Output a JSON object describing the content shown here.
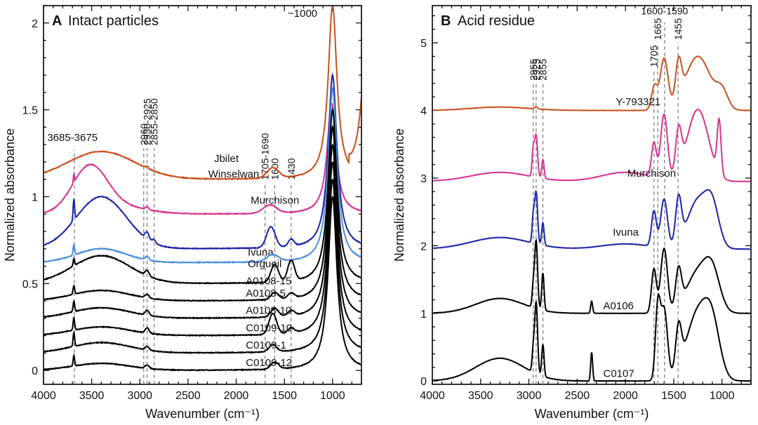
{
  "chart_data": [
    {
      "type": "line",
      "panel_letter": "A",
      "title": "Intact particles",
      "xlabel": "Wavenumber (cm⁻¹)",
      "ylabel": "Normalized absorbance",
      "xlim": [
        4000,
        700
      ],
      "ylim": [
        -0.08,
        2.1
      ],
      "x_ticks": [
        4000,
        3500,
        3000,
        2500,
        2000,
        1500,
        1000
      ],
      "y_ticks": [
        0,
        0.5,
        1,
        1.5,
        2
      ],
      "y_tick_labels": [
        "0",
        "0.5",
        "1",
        "1.5",
        "2"
      ],
      "x_minor_step": 100,
      "y_minor_step": 0.1,
      "series": [
        {
          "name": "Jbilet Winselwan",
          "color": "#c8501f",
          "offset": 1.1,
          "peak": 1.0,
          "profile": "jbilet"
        },
        {
          "name": "Murchison",
          "color": "#d6338f",
          "offset": 0.9,
          "peak": 0.8,
          "profile": "murch"
        },
        {
          "name": "Ivuna",
          "color": "#1a24a8",
          "offset": 0.7,
          "peak": 1.0,
          "profile": "ivuna"
        },
        {
          "name": "Orgueil",
          "color": "#4a8fdc",
          "offset": 0.62,
          "peak": 1.0,
          "profile": "orgueil"
        },
        {
          "name": "A0108-15",
          "color": "#000000",
          "offset": 0.5,
          "peak": 1.0,
          "profile": "a15"
        },
        {
          "name": "A0108-5",
          "color": "#000000",
          "offset": 0.4,
          "peak": 1.0,
          "profile": "a5"
        },
        {
          "name": "A0108-10",
          "color": "#000000",
          "offset": 0.3,
          "peak": 1.0,
          "profile": "a10"
        },
        {
          "name": "C0109-10",
          "color": "#000000",
          "offset": 0.2,
          "peak": 1.0,
          "profile": "c10"
        },
        {
          "name": "C0109-1",
          "color": "#000000",
          "offset": 0.1,
          "peak": 1.0,
          "profile": "c1"
        },
        {
          "name": "C0109-12",
          "color": "#000000",
          "offset": 0.0,
          "peak": 1.0,
          "profile": "c12"
        }
      ],
      "reference_lines": [
        {
          "x": 3680,
          "label": "3685-3675",
          "ybot": -0.08,
          "ytop": 1.27
        },
        {
          "x": 2960,
          "label": "2960",
          "ybot": -0.08,
          "ytop": 1.28
        },
        {
          "x": 2925,
          "label": "2930-2925",
          "ybot": -0.08,
          "ytop": 1.28
        },
        {
          "x": 2852,
          "label": "2855-2850",
          "ybot": -0.08,
          "ytop": 1.28
        },
        {
          "x": 1700,
          "label": "1705-1690",
          "ybot": -0.08,
          "ytop": 1.08
        },
        {
          "x": 1600,
          "label": "1600",
          "ybot": -0.08,
          "ytop": 1.08
        },
        {
          "x": 1430,
          "label": "1430",
          "ybot": -0.08,
          "ytop": 1.08
        }
      ],
      "annotations": [
        "~1000"
      ]
    },
    {
      "type": "line",
      "panel_letter": "B",
      "title": "Acid residue",
      "xlabel": "Wavenumber (cm⁻¹)",
      "ylabel": "Normalized absorbance",
      "xlim": [
        4000,
        700
      ],
      "ylim": [
        -0.05,
        5.55
      ],
      "x_ticks": [
        4000,
        3500,
        3000,
        2500,
        2000,
        1500,
        1000
      ],
      "y_ticks": [
        0,
        1,
        2,
        3,
        4,
        5
      ],
      "y_tick_labels": [
        "0",
        "1",
        "2",
        "3",
        "4",
        "5"
      ],
      "x_minor_step": 100,
      "y_minor_step": 0.2,
      "series": [
        {
          "name": "Y-793321",
          "color": "#c8501f",
          "offset": 4.0,
          "peak": 1.0,
          "profile": "y79"
        },
        {
          "name": "Murchison",
          "color": "#d6338f",
          "offset": 2.95,
          "peak": 1.12,
          "profile": "bmurch"
        },
        {
          "name": "Ivuna",
          "color": "#1a24a8",
          "offset": 1.95,
          "peak": 0.95,
          "profile": "bivuna"
        },
        {
          "name": "A0106",
          "color": "#000000",
          "offset": 1.0,
          "peak": 1.0,
          "profile": "ba0106"
        },
        {
          "name": "C0107",
          "color": "#000000",
          "offset": 0.0,
          "peak": 1.05,
          "profile": "bc0107"
        }
      ],
      "reference_lines": [
        {
          "x": 2955,
          "label": "2955",
          "ybot": -0.05,
          "ytop": 4.4
        },
        {
          "x": 2925,
          "label": "2925",
          "ybot": -0.05,
          "ytop": 4.4
        },
        {
          "x": 2855,
          "label": "2855",
          "ybot": -0.05,
          "ytop": 4.4
        },
        {
          "x": 1705,
          "label": "1705",
          "ybot": -0.05,
          "ytop": 4.6
        },
        {
          "x": 1665,
          "label": "1665",
          "ybot": -0.05,
          "ytop": 5.0
        },
        {
          "x": 1595,
          "label": "1600-1590",
          "ybot": -0.05,
          "ytop": 5.3
        },
        {
          "x": 1455,
          "label": "1455",
          "ybot": -0.05,
          "ytop": 5.0
        }
      ],
      "annotations": []
    }
  ]
}
